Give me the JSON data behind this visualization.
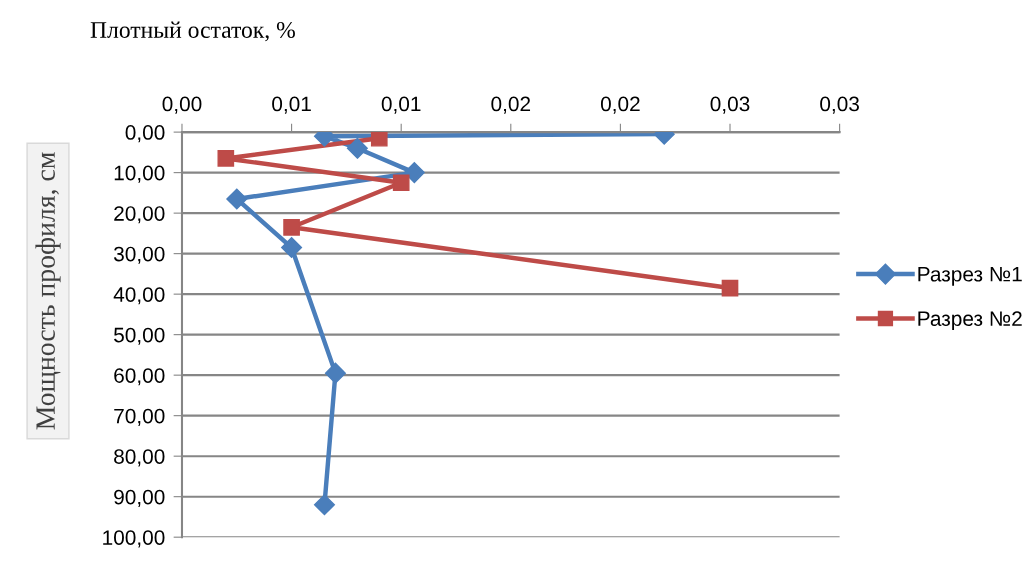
{
  "chart_data": {
    "type": "line",
    "xlabel": "Плотный остаток, %",
    "ylabel": "Мощность профиля, см",
    "xlim": [
      0,
      0.03
    ],
    "xticks": [
      {
        "value": 0,
        "label": "0,00"
      },
      {
        "value": 0.005,
        "label": "0,01"
      },
      {
        "value": 0.01,
        "label": "0,01"
      },
      {
        "value": 0.015,
        "label": "0,02"
      },
      {
        "value": 0.02,
        "label": "0,02"
      },
      {
        "value": 0.025,
        "label": "0,03"
      },
      {
        "value": 0.03,
        "label": "0,03"
      }
    ],
    "ylim": [
      100,
      0
    ],
    "yticks": [
      {
        "value": 0,
        "label": "0,00"
      },
      {
        "value": 10,
        "label": "10,00"
      },
      {
        "value": 20,
        "label": "20,00"
      },
      {
        "value": 30,
        "label": "30,00"
      },
      {
        "value": 40,
        "label": "40,00"
      },
      {
        "value": 50,
        "label": "50,00"
      },
      {
        "value": 60,
        "label": "60,00"
      },
      {
        "value": 70,
        "label": "70,00"
      },
      {
        "value": 80,
        "label": "80,00"
      },
      {
        "value": 90,
        "label": "90,00"
      },
      {
        "value": 100,
        "label": "100,00"
      }
    ],
    "grid": "y",
    "legend": "right",
    "series": [
      {
        "name": "Разрез №1",
        "color": "#4a7ebb",
        "marker": "diamond",
        "x": [
          0.022,
          0.0065,
          0.008,
          0.0106,
          0.0025,
          0.005,
          0.007,
          0.0065
        ],
        "values": [
          0.5,
          1,
          4,
          10,
          16.5,
          28.5,
          59.5,
          92
        ]
      },
      {
        "name": "Разрез №2",
        "color": "#be4b48",
        "marker": "square",
        "x": [
          0.009,
          0.002,
          0.01,
          0.005,
          0.025
        ],
        "values": [
          1.5,
          6.5,
          12.5,
          23.5,
          38.5
        ]
      }
    ]
  }
}
